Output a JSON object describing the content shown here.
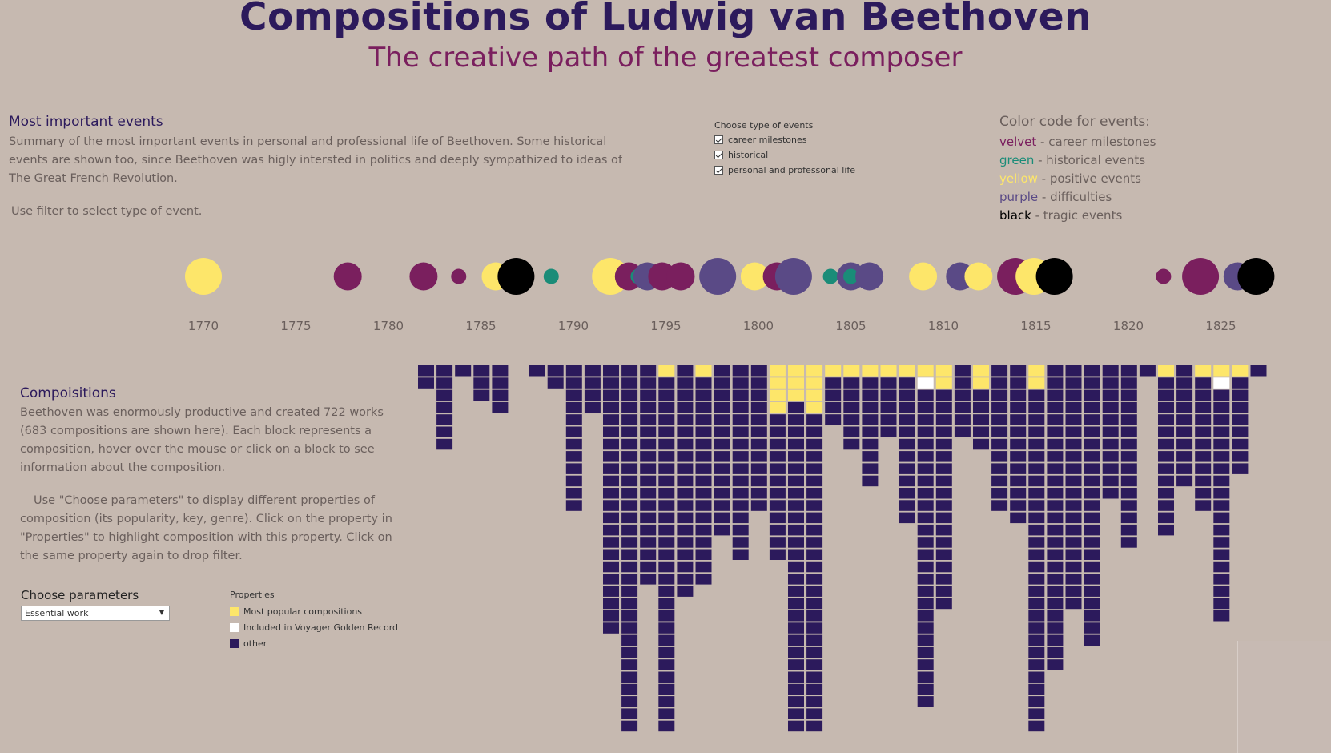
{
  "header": {
    "title": "Compositions of Ludwig van Beethoven",
    "subtitle": "The creative path of the greatest composer"
  },
  "events_section": {
    "title": "Most important events",
    "description": "Summary of the most important events in personal and professional life of Beethoven. Some historical events are shown too, since Beethoven was higly intersted in politics and deeply sympathized to ideas of The Great French Revolution.",
    "hint": "Use filter to select type of event."
  },
  "event_filter": {
    "title": "Choose type of events",
    "options": [
      {
        "label": "career milestones",
        "checked": true
      },
      {
        "label": "historical",
        "checked": true
      },
      {
        "label": "personal and professonal life",
        "checked": true
      }
    ]
  },
  "color_code": {
    "title": "Color code for events:",
    "items": [
      {
        "keyword": "velvet",
        "sep": " - ",
        "text": "career milestones",
        "color": "#7a1f5e"
      },
      {
        "keyword": "green",
        "sep": " - ",
        "text": "historical events",
        "color": "#1a8c78"
      },
      {
        "keyword": "yellow",
        "sep": " - ",
        "text": "positive events",
        "color": "#fde66a"
      },
      {
        "keyword": "purple",
        "sep": " - ",
        "text": "difficulties",
        "color": "#5a4a86"
      },
      {
        "keyword": "black",
        "sep": " - ",
        "text": "tragic events",
        "color": "#000000"
      }
    ]
  },
  "timeline": {
    "year_range": [
      1770,
      1827
    ],
    "ticks": [
      "1770",
      "1775",
      "1780",
      "1785",
      "1790",
      "1795",
      "1800",
      "1805",
      "1810",
      "1815",
      "1820",
      "1825"
    ],
    "events": [
      {
        "year": 1770.0,
        "type": "yellow",
        "size": "large"
      },
      {
        "year": 1777.8,
        "type": "velvet",
        "size": "medium"
      },
      {
        "year": 1781.9,
        "type": "velvet",
        "size": "medium"
      },
      {
        "year": 1783.8,
        "type": "velvet",
        "size": "small"
      },
      {
        "year": 1785.8,
        "type": "yellow",
        "size": "medium"
      },
      {
        "year": 1786.9,
        "type": "black",
        "size": "large"
      },
      {
        "year": 1788.8,
        "type": "green",
        "size": "small"
      },
      {
        "year": 1792.0,
        "type": "yellow",
        "size": "large"
      },
      {
        "year": 1793.0,
        "type": "velvet",
        "size": "medium"
      },
      {
        "year": 1793.5,
        "type": "green",
        "size": "small"
      },
      {
        "year": 1794.0,
        "type": "purple",
        "size": "medium"
      },
      {
        "year": 1794.8,
        "type": "velvet",
        "size": "medium"
      },
      {
        "year": 1795.8,
        "type": "velvet",
        "size": "medium"
      },
      {
        "year": 1797.8,
        "type": "purple",
        "size": "large"
      },
      {
        "year": 1799.8,
        "type": "yellow",
        "size": "medium"
      },
      {
        "year": 1801.0,
        "type": "velvet",
        "size": "medium"
      },
      {
        "year": 1801.9,
        "type": "purple",
        "size": "large"
      },
      {
        "year": 1803.9,
        "type": "green",
        "size": "small"
      },
      {
        "year": 1805.0,
        "type": "purple",
        "size": "medium"
      },
      {
        "year": 1805.0,
        "type": "green",
        "size": "small"
      },
      {
        "year": 1806.0,
        "type": "purple",
        "size": "medium"
      },
      {
        "year": 1808.9,
        "type": "yellow",
        "size": "medium"
      },
      {
        "year": 1810.9,
        "type": "purple",
        "size": "medium"
      },
      {
        "year": 1811.9,
        "type": "yellow",
        "size": "medium"
      },
      {
        "year": 1813.9,
        "type": "velvet",
        "size": "large"
      },
      {
        "year": 1814.9,
        "type": "yellow",
        "size": "large"
      },
      {
        "year": 1816.0,
        "type": "black",
        "size": "large"
      },
      {
        "year": 1821.9,
        "type": "velvet",
        "size": "small"
      },
      {
        "year": 1823.9,
        "type": "velvet",
        "size": "large"
      },
      {
        "year": 1825.9,
        "type": "purple",
        "size": "medium"
      },
      {
        "year": 1826.9,
        "type": "black",
        "size": "large"
      }
    ]
  },
  "compositions_section": {
    "title": "Compoisitions",
    "description": "Beethoven was enormously productive and created 722 works (683 compositions are shown here). Each block represents a composition, hover over the mouse or click on a block to see information about the composition.",
    "instructions": "Use \"Choose parameters\" to display different properties of composition (its popularity, key, genre). Click on the property in \"Properties\" to highlight composition with this property. Click on the same property again to drop filter."
  },
  "parameters": {
    "label": "Choose parameters",
    "selected": "Essential work"
  },
  "properties_legend": {
    "title": "Properties",
    "items": [
      {
        "label": "Most popular compositions",
        "color": "#fde66a"
      },
      {
        "label": "Included in Voyager Golden Record",
        "color": "#ffffff"
      },
      {
        "label": "other",
        "color": "#2c1a5c"
      }
    ]
  },
  "colors": {
    "background": "#c6b9b0",
    "other": "#2c1a5c",
    "popular": "#fde66a",
    "voyager": "#ffffff"
  },
  "chart_data": {
    "type": "table",
    "description_key": "composition blocks per year, top-down stacking",
    "years": [
      1782,
      1783,
      1784,
      1785,
      1786,
      1787,
      1788,
      1789,
      1790,
      1791,
      1792,
      1793,
      1794,
      1795,
      1796,
      1797,
      1798,
      1799,
      1800,
      1801,
      1802,
      1803,
      1804,
      1805,
      1806,
      1807,
      1808,
      1809,
      1810,
      1811,
      1812,
      1813,
      1814,
      1815,
      1816,
      1817,
      1818,
      1819,
      1820,
      1821,
      1822,
      1823,
      1824,
      1825,
      1826,
      1827
    ],
    "counts": [
      2,
      7,
      1,
      3,
      4,
      0,
      1,
      2,
      12,
      4,
      22,
      30,
      18,
      33,
      19,
      18,
      14,
      16,
      12,
      16,
      31,
      33,
      5,
      7,
      10,
      6,
      13,
      28,
      20,
      6,
      7,
      12,
      13,
      31,
      25,
      20,
      23,
      11,
      15,
      1,
      14,
      10,
      12,
      21,
      9,
      1
    ],
    "popular": [
      [],
      [],
      [],
      [],
      [],
      [],
      [],
      [],
      [],
      [],
      [],
      [],
      [],
      [
        0
      ],
      [],
      [
        0
      ],
      [],
      [],
      [],
      [
        0,
        1,
        2,
        3
      ],
      [
        0,
        1,
        2
      ],
      [
        0,
        1,
        2,
        3
      ],
      [
        0
      ],
      [
        0
      ],
      [
        0
      ],
      [
        0
      ],
      [
        0
      ],
      [
        0
      ],
      [
        0,
        1
      ],
      [],
      [
        0,
        1
      ],
      [],
      [],
      [
        0,
        1
      ],
      [],
      [],
      [],
      [],
      [],
      [],
      [
        0
      ],
      [],
      [
        0
      ],
      [
        0
      ],
      [
        0
      ],
      []
    ],
    "voyager": [
      [],
      [],
      [],
      [],
      [],
      [],
      [],
      [],
      [],
      [],
      [],
      [],
      [],
      [],
      [],
      [],
      [],
      [],
      [],
      [],
      [],
      [],
      [],
      [],
      [],
      [],
      [],
      [
        1
      ],
      [],
      [],
      [],
      [],
      [],
      [],
      [],
      [],
      [],
      [],
      [],
      [],
      [],
      [],
      [],
      [
        1
      ],
      [],
      []
    ]
  }
}
